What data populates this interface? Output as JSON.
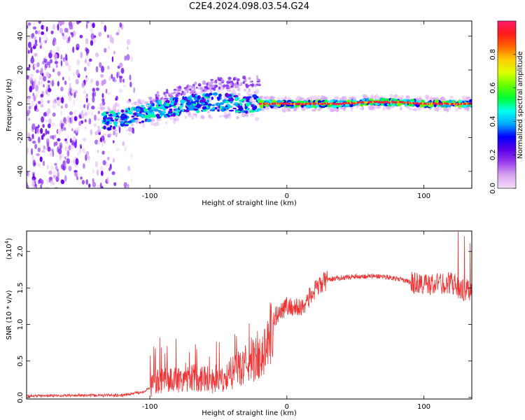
{
  "figure": {
    "title": "C2E4.2024.098.03.54.G24"
  },
  "chart_data": [
    {
      "type": "heatmap",
      "name": "spectrogram",
      "title": "C2E4.2024.098.03.54.G24",
      "xlabel": "Height of straight line (km)",
      "ylabel": "Frequency (Hz)",
      "xlim": [
        -190,
        135
      ],
      "ylim": [
        -50,
        49
      ],
      "xticks": [
        -100,
        0,
        100
      ],
      "xtick_labels": [
        "-100",
        "0",
        "100"
      ],
      "yticks": [
        -40,
        -20,
        0,
        20,
        40
      ],
      "ytick_labels": [
        "-40",
        "-20",
        "0",
        "20",
        "40"
      ],
      "colorbar": {
        "label": "Normalized spectral amplitude",
        "range": [
          0,
          1
        ],
        "ticks": [
          0.0,
          0.2,
          0.4,
          0.6,
          0.8
        ],
        "tick_labels": [
          "0.0",
          "0.2",
          "0.4",
          "0.6",
          "0.8"
        ],
        "colors": [
          "#f4ddf8",
          "#d9a6f0",
          "#9b40ee",
          "#5a00e6",
          "#0000ff",
          "#00aaff",
          "#00ffee",
          "#00ff33",
          "#66ff00",
          "#ddff00",
          "#ffcc00",
          "#ff6600",
          "#ff1a1a",
          "#ff1a6b"
        ]
      },
      "signal_line": {
        "x": [
          -130,
          -110,
          -90,
          -70,
          -50,
          -30,
          -15,
          0,
          20,
          40,
          60,
          80,
          100,
          120,
          135
        ],
        "y": [
          -10,
          -7,
          -3,
          0,
          1,
          0,
          0,
          0,
          0,
          0,
          1,
          1,
          0,
          0,
          0
        ]
      }
    },
    {
      "type": "line",
      "name": "snr",
      "xlabel": "Height of straight line (km)",
      "ylabel": "SNR (10 * v/v)",
      "scale_label": "(x10",
      "scale_exponent": "4",
      "scale_close": ")",
      "xlim": [
        -190,
        135
      ],
      "ylim": [
        -0.02,
        2.28
      ],
      "xticks": [
        -100,
        0,
        100
      ],
      "xtick_labels": [
        "-100",
        "0",
        "100"
      ],
      "yticks": [
        0.0,
        0.5,
        1.0,
        1.5,
        2.0
      ],
      "ytick_labels": [
        "0.0",
        "0.5",
        "1.0",
        "1.5",
        "2.0"
      ],
      "color": "#ee3333",
      "envelope": {
        "x": [
          -190,
          -150,
          -120,
          -105,
          -100,
          -95,
          -80,
          -60,
          -50,
          -45,
          -40,
          -30,
          -20,
          -15,
          -10,
          -5,
          0,
          10,
          20,
          25,
          30,
          50,
          70,
          80,
          90,
          100,
          110,
          120,
          130,
          135
        ],
        "y": [
          0.02,
          0.03,
          0.03,
          0.08,
          0.13,
          0.22,
          0.25,
          0.28,
          0.2,
          0.25,
          0.33,
          0.45,
          0.55,
          0.7,
          1.05,
          1.2,
          1.25,
          1.22,
          1.45,
          1.55,
          1.62,
          1.66,
          1.66,
          1.63,
          1.58,
          1.55,
          1.55,
          1.58,
          1.45,
          1.5
        ]
      }
    }
  ]
}
